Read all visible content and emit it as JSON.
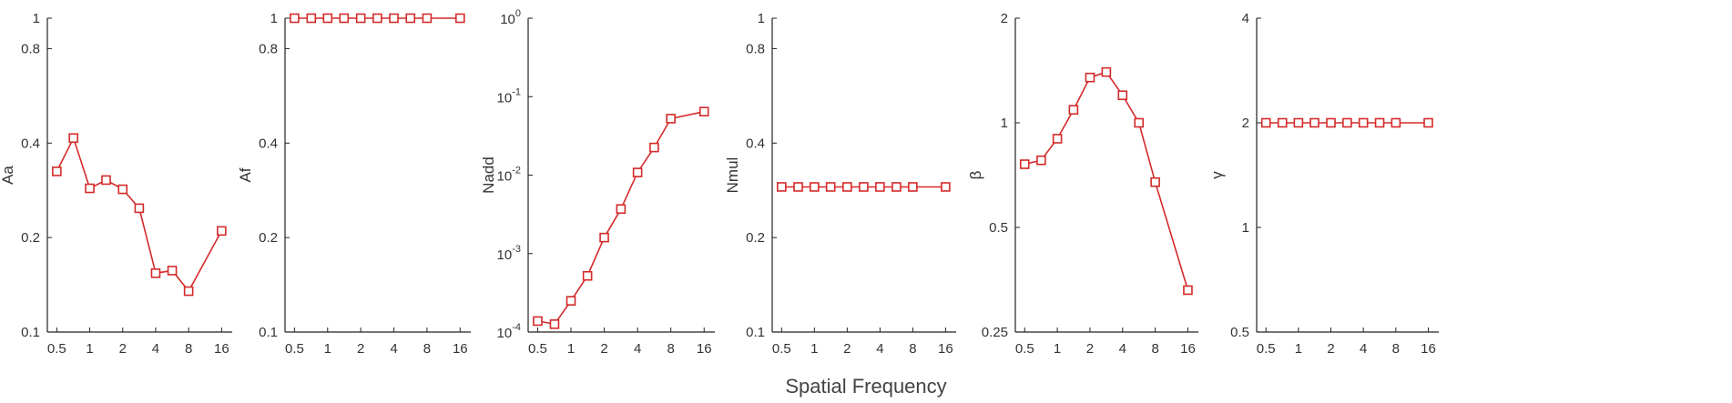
{
  "xlabel": "Spatial Frequency",
  "colors": {
    "series": "#d42a2a",
    "axis": "#222222",
    "text": "#333333"
  },
  "chart_data": [
    {
      "type": "line",
      "ylabel": "Aa",
      "xscale": "log",
      "yscale": "log",
      "xlim": [
        0.41,
        20
      ],
      "ylim": [
        0.1,
        1
      ],
      "xticks": [
        "0.5",
        "1",
        "2",
        "4",
        "8",
        "16"
      ],
      "yticks": [
        "0.1",
        "0.2",
        "0.4",
        "0.8",
        "1"
      ],
      "series": [
        {
          "x": [
            0.5,
            0.71,
            1,
            1.41,
            2,
            2.83,
            4,
            5.66,
            8,
            16
          ],
          "y": [
            0.325,
            0.415,
            0.287,
            0.305,
            0.285,
            0.248,
            0.154,
            0.157,
            0.135,
            0.21
          ]
        }
      ]
    },
    {
      "type": "line",
      "ylabel": "Af",
      "xscale": "log",
      "yscale": "log",
      "xlim": [
        0.41,
        20
      ],
      "ylim": [
        0.1,
        1
      ],
      "xticks": [
        "0.5",
        "1",
        "2",
        "4",
        "8",
        "16"
      ],
      "yticks": [
        "0.1",
        "0.2",
        "0.4",
        "0.8",
        "1"
      ],
      "series": [
        {
          "x": [
            0.5,
            0.71,
            1,
            1.41,
            2,
            2.83,
            4,
            5.66,
            8,
            16
          ],
          "y": [
            1,
            1,
            1,
            1,
            1,
            1,
            1,
            1,
            1,
            1
          ]
        }
      ]
    },
    {
      "type": "line",
      "ylabel": "Nadd",
      "xscale": "log",
      "yscale": "log",
      "xlim": [
        0.41,
        20
      ],
      "ylim": [
        0.0001,
        1
      ],
      "xticks": [
        "0.5",
        "1",
        "2",
        "4",
        "8",
        "16"
      ],
      "yticks": [
        {
          "base": "10",
          "exp": "-4",
          "value": 0.0001
        },
        {
          "base": "10",
          "exp": "-3",
          "value": 0.001
        },
        {
          "base": "10",
          "exp": "-2",
          "value": 0.01
        },
        {
          "base": "10",
          "exp": "-1",
          "value": 0.1
        },
        {
          "base": "10",
          "exp": "0",
          "value": 1
        }
      ],
      "series": [
        {
          "x": [
            0.5,
            0.71,
            1,
            1.41,
            2,
            2.83,
            4,
            5.66,
            8,
            16
          ],
          "y": [
            0.000138,
            0.000126,
            0.00025,
            0.00052,
            0.0016,
            0.0037,
            0.0108,
            0.0225,
            0.0525,
            0.0645
          ]
        }
      ]
    },
    {
      "type": "line",
      "ylabel": "Nmul",
      "xscale": "log",
      "yscale": "log",
      "xlim": [
        0.41,
        20
      ],
      "ylim": [
        0.1,
        1
      ],
      "xticks": [
        "0.5",
        "1",
        "2",
        "4",
        "8",
        "16"
      ],
      "yticks": [
        "0.1",
        "0.2",
        "0.4",
        "0.8",
        "1"
      ],
      "series": [
        {
          "x": [
            0.5,
            0.71,
            1,
            1.41,
            2,
            2.83,
            4,
            5.66,
            8,
            16
          ],
          "y": [
            0.29,
            0.29,
            0.29,
            0.29,
            0.29,
            0.29,
            0.29,
            0.29,
            0.29,
            0.29
          ]
        }
      ]
    },
    {
      "type": "line",
      "ylabel": "β",
      "xscale": "log",
      "yscale": "log",
      "xlim": [
        0.41,
        20
      ],
      "ylim": [
        0.25,
        2
      ],
      "xticks": [
        "0.5",
        "1",
        "2",
        "4",
        "8",
        "16"
      ],
      "yticks": [
        "0.25",
        "0.5",
        "1",
        "2"
      ],
      "series": [
        {
          "x": [
            0.5,
            0.71,
            1,
            1.41,
            2,
            2.83,
            4,
            5.66,
            8,
            16
          ],
          "y": [
            0.76,
            0.78,
            0.9,
            1.09,
            1.35,
            1.4,
            1.2,
            1.0,
            0.675,
            0.33
          ]
        }
      ]
    },
    {
      "type": "line",
      "ylabel": "γ",
      "xscale": "log",
      "yscale": "log",
      "xlim": [
        0.41,
        20
      ],
      "ylim": [
        0.5,
        4
      ],
      "xticks": [
        "0.5",
        "1",
        "2",
        "4",
        "8",
        "16"
      ],
      "yticks": [
        "0.5",
        "1",
        "2",
        "4"
      ],
      "series": [
        {
          "x": [
            0.5,
            0.71,
            1,
            1.41,
            2,
            2.83,
            4,
            5.66,
            8,
            16
          ],
          "y": [
            2,
            2,
            2,
            2,
            2,
            2,
            2,
            2,
            2,
            2
          ]
        }
      ]
    }
  ]
}
